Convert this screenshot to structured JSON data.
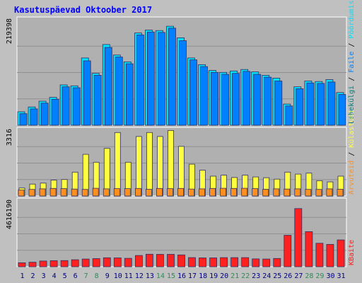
{
  "chart_data": {
    "type": "bar",
    "title": "Kasutuspäevad Oktoober 2017",
    "categories": [
      "1",
      "2",
      "3",
      "4",
      "5",
      "6",
      "7",
      "8",
      "9",
      "10",
      "11",
      "12",
      "13",
      "14",
      "15",
      "16",
      "17",
      "18",
      "19",
      "20",
      "21",
      "22",
      "23",
      "24",
      "25",
      "26",
      "27",
      "28",
      "29",
      "30",
      "31"
    ],
    "weekend_days": [
      "7",
      "8",
      "14",
      "15",
      "21",
      "22",
      "28",
      "29"
    ],
    "grid": true,
    "colors": {
      "background": "#c0c0c0",
      "panel": "#b0b0b0",
      "frame": "#ffffff",
      "title": "#0000ff",
      "weekday_label": "#008080",
      "weekend_label": "#2e8b57",
      "pages": "#00e0ff",
      "hits": "#0080ff",
      "visits": "#ffff40",
      "visitors": "#ff9020",
      "bandwidth": "#ff2020"
    },
    "panels": [
      {
        "id": "top",
        "max_label": "219398",
        "ylim": [
          0,
          219398
        ],
        "legend": [
          "Pöördumisi",
          "Faile",
          "Lehekülgi"
        ],
        "series": [
          {
            "name": "Pöördumisi",
            "values": [
              28000,
              38000,
              50000,
              58000,
              84000,
              82000,
              140000,
              108000,
              168000,
              146000,
              132000,
              192000,
              198000,
              197000,
              206000,
              182000,
              140000,
              126000,
              114000,
              110000,
              113000,
              116000,
              111000,
              104000,
              98000,
              44000,
              80000,
              92000,
              91000,
              95000,
              68000
            ]
          },
          {
            "name": "Faile",
            "values": [
              24000,
              34000,
              46000,
              54000,
              80000,
              78000,
              134000,
              104000,
              162000,
              142000,
              128000,
              188000,
              194000,
              193000,
              202000,
              176000,
              136000,
              122000,
              110000,
              106000,
              108000,
              112000,
              106000,
              100000,
              92000,
              40000,
              76000,
              88000,
              87000,
              90000,
              64000
            ]
          }
        ]
      },
      {
        "id": "middle",
        "max_label": "3316",
        "ylim": [
          0,
          3316
        ],
        "legend": [
          "Külastusi",
          "Arvuteid"
        ],
        "series": [
          {
            "name": "Külastusi",
            "values": [
              400,
              600,
              650,
              800,
              830,
              1200,
              2100,
              1700,
              2400,
              3200,
              1700,
              3000,
              3200,
              3000,
              3300,
              2500,
              1600,
              1300,
              1000,
              1050,
              930,
              1050,
              960,
              920,
              850,
              1200,
              1100,
              1150,
              770,
              710,
              1000
            ]
          },
          {
            "name": "Arvuteid",
            "values": [
              300,
              330,
              360,
              380,
              370,
              350,
              330,
              390,
              360,
              370,
              370,
              380,
              340,
              380,
              370,
              380,
              350,
              360,
              380,
              390,
              380,
              390,
              370,
              340,
              360,
              350,
              360,
              330,
              330,
              360,
              340
            ]
          }
        ]
      },
      {
        "id": "bottom",
        "max_label": "4616190",
        "ylim": [
          0,
          4616190
        ],
        "legend": [
          "KBaite"
        ],
        "series": [
          {
            "name": "KBaite",
            "values": [
              280000,
              320000,
              400000,
              420000,
              430000,
              490000,
              540000,
              570000,
              630000,
              620000,
              590000,
              790000,
              880000,
              870000,
              870000,
              830000,
              640000,
              620000,
              620000,
              640000,
              640000,
              640000,
              550000,
              540000,
              580000,
              2210000,
              4080000,
              2460000,
              1650000,
              1570000,
              1880000
            ]
          }
        ]
      }
    ]
  }
}
